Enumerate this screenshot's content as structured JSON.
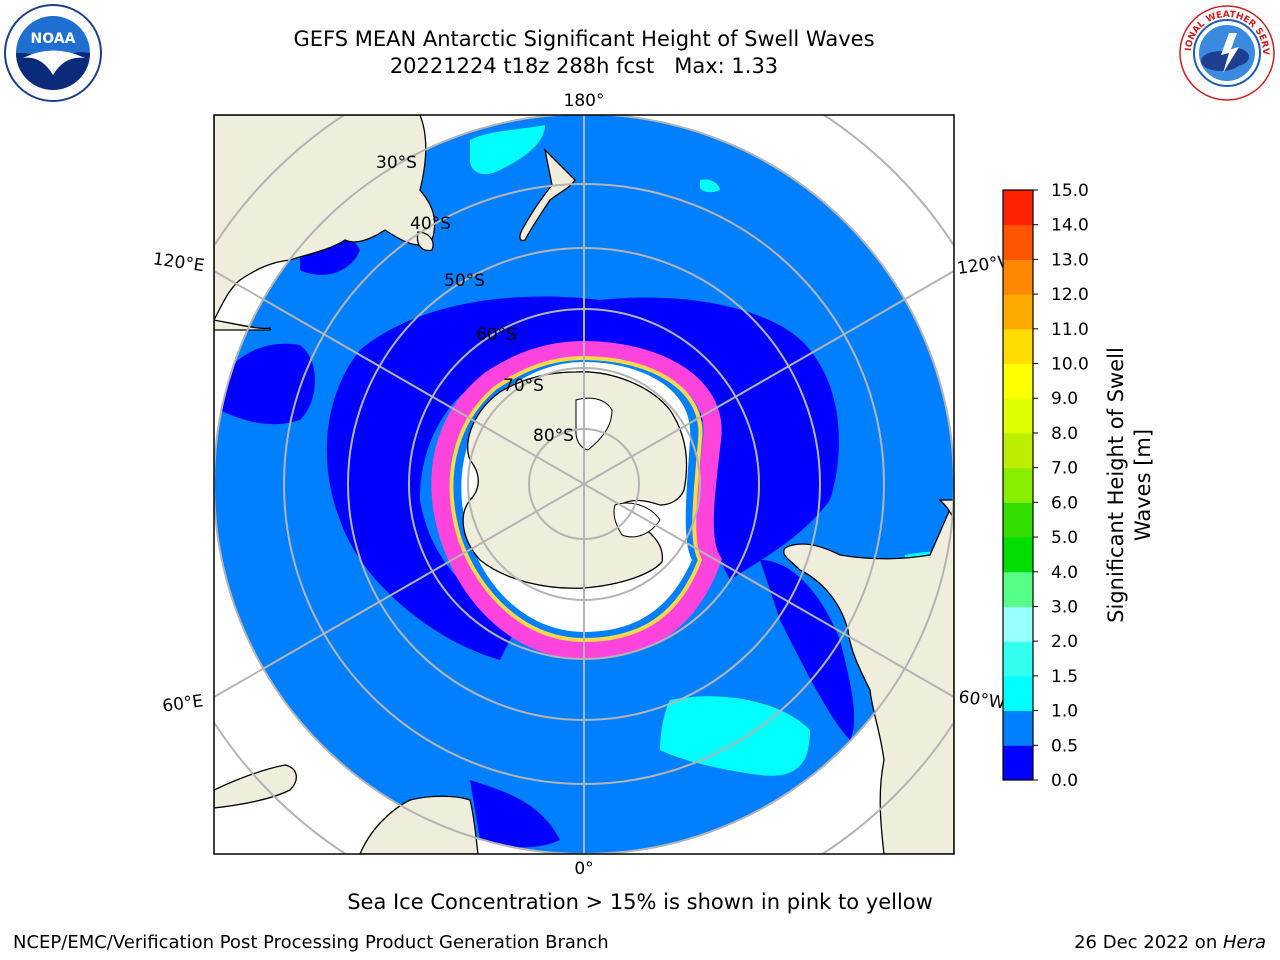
{
  "title": {
    "line1": "GEFS MEAN Antarctic Significant Height of Swell Waves",
    "line2": "20221224 t18z 288h fcst   Max: 1.33"
  },
  "map": {
    "projection": "south polar stereographic",
    "lon_labels": {
      "top": "180°",
      "bottom": "0°",
      "upper_left": "120°E",
      "upper_right": "120°W",
      "lower_left": "60°E",
      "lower_right": "60°W"
    },
    "lat_labels": [
      "30°S",
      "40°S",
      "50°S",
      "60°S",
      "70°S",
      "80°S"
    ],
    "colors": {
      "land": "#efeddc",
      "ocean_low": "#0000ff",
      "ocean_mid": "#0080ff",
      "ocean_high": "#00ffff",
      "ice_edge": "#ff44dd",
      "ice": "#ffffff",
      "graticule": "#b4b4b4"
    }
  },
  "colorbar": {
    "label_line1": "Significant Height of Swell",
    "label_line2": "Waves [m]",
    "ticks": [
      "0.0",
      "0.5",
      "1.0",
      "1.5",
      "2.0",
      "3.0",
      "4.0",
      "5.0",
      "6.0",
      "7.0",
      "8.0",
      "9.0",
      "10.0",
      "11.0",
      "12.0",
      "13.0",
      "14.0",
      "15.0"
    ],
    "colors": [
      "#0000ff",
      "#0080ff",
      "#00ffff",
      "#33ffee",
      "#99ffff",
      "#55ff88",
      "#00dd00",
      "#33dd00",
      "#88ee00",
      "#bbee00",
      "#ddff00",
      "#ffff00",
      "#ffdd00",
      "#ffaa00",
      "#ff8800",
      "#ff5500",
      "#ff2200",
      "#ff0000"
    ]
  },
  "note": "Sea Ice Concentration > 15% is shown in pink to yellow",
  "footer": {
    "left": "NCEP/EMC/Verification Post Processing Product Generation Branch",
    "right_text": "26 Dec 2022 on ",
    "right_host": "Hera"
  },
  "logos": {
    "left_text": "NOAA",
    "right_text": "NATIONAL WEATHER SERVICE"
  }
}
